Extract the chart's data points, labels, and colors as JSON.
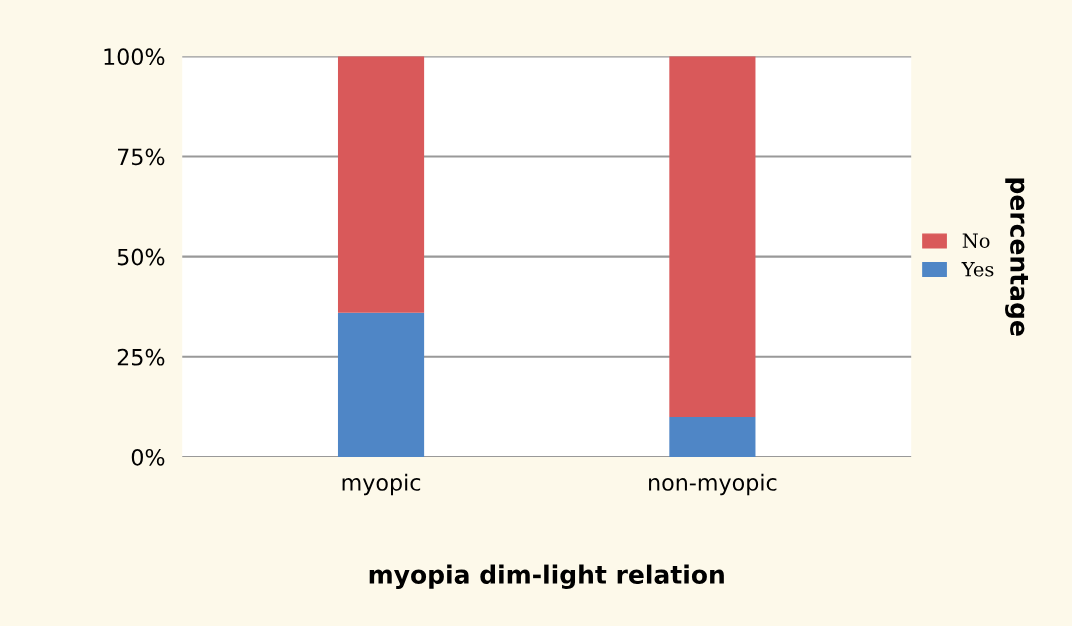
{
  "chart_data": {
    "type": "bar",
    "stacked": true,
    "xlabel": "myopia dim-light relation",
    "ylabel": "percentage",
    "categories": [
      "myopic",
      "non-myopic"
    ],
    "series": [
      {
        "name": "Yes",
        "color": "#4f86c6",
        "values": [
          36,
          10
        ]
      },
      {
        "name": "No",
        "color": "#d9595a",
        "values": [
          64,
          90
        ]
      }
    ],
    "ylim": [
      0,
      100
    ],
    "yticks": [
      {
        "value": 0,
        "label": "0%"
      },
      {
        "value": 25,
        "label": "25%"
      },
      {
        "value": 50,
        "label": "50%"
      },
      {
        "value": 75,
        "label": "75%"
      },
      {
        "value": 100,
        "label": "100%"
      }
    ],
    "grid": "y",
    "legend": "right"
  }
}
